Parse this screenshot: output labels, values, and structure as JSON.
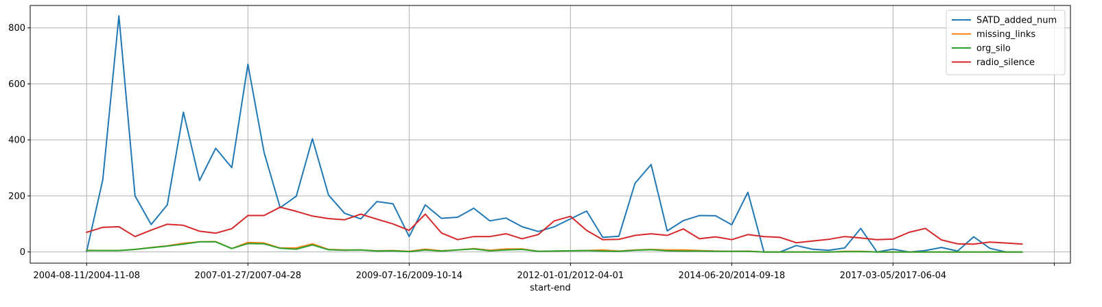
{
  "chart_data": {
    "type": "line",
    "xlabel": "start-end",
    "ylim": [
      -40,
      880
    ],
    "y_ticks": [
      0,
      200,
      400,
      600,
      800
    ],
    "x_tick_labels": [
      "2004-08-11/2004-11-08",
      "2007-01-27/2007-04-28",
      "2009-07-16/2009-10-14",
      "2012-01-01/2012-04-01",
      "2014-06-20/2014-09-18",
      "2017-03-05/2017-06-04",
      ""
    ],
    "x_tick_positions": [
      0,
      10,
      20,
      30,
      40,
      50,
      60
    ],
    "xlim": [
      -3.5,
      61.0
    ],
    "grid": true,
    "legend_position": "top-right",
    "series": [
      {
        "name": "SATD_added_num",
        "color": "#1f77b4",
        "values": [
          2,
          258,
          843,
          200,
          98,
          168,
          499,
          255,
          370,
          301,
          670,
          356,
          158,
          199,
          404,
          203,
          138,
          118,
          180,
          172,
          55,
          168,
          120,
          124,
          156,
          111,
          121,
          90,
          73,
          90,
          118,
          146,
          52,
          56,
          245,
          312,
          75,
          112,
          130,
          129,
          97,
          213,
          0,
          0,
          23,
          10,
          6,
          14,
          84,
          0,
          10,
          0,
          5,
          16,
          3,
          54,
          13,
          0,
          0
        ]
      },
      {
        "name": "missing_links",
        "color": "#ff7f0e",
        "values": [
          6,
          5,
          5,
          9,
          16,
          22,
          31,
          36,
          37,
          12,
          34,
          32,
          14,
          14,
          29,
          9,
          7,
          7,
          4,
          5,
          2,
          10,
          4,
          7,
          12,
          6,
          11,
          11,
          2,
          3,
          4,
          5,
          7,
          3,
          7,
          9,
          7,
          7,
          5,
          3,
          2,
          3,
          0,
          0,
          0,
          0,
          0,
          2,
          2,
          0,
          0,
          0,
          0,
          0,
          0,
          0,
          0,
          0,
          0
        ]
      },
      {
        "name": "org_silo",
        "color": "#2ca02c",
        "values": [
          5,
          5,
          5,
          9,
          15,
          21,
          28,
          36,
          36,
          12,
          30,
          29,
          13,
          10,
          25,
          8,
          6,
          7,
          3,
          4,
          1,
          7,
          3,
          7,
          11,
          4,
          7,
          9,
          2,
          3,
          4,
          5,
          3,
          2,
          6,
          8,
          4,
          3,
          3,
          2,
          2,
          2,
          0,
          0,
          0,
          0,
          0,
          1,
          1,
          0,
          0,
          0,
          0,
          0,
          0,
          0,
          0,
          0,
          0
        ]
      },
      {
        "name": "radio_silence",
        "color": "#d62728",
        "values": [
          70,
          88,
          90,
          55,
          78,
          99,
          95,
          74,
          67,
          83,
          130,
          130,
          160,
          145,
          128,
          119,
          115,
          135,
          117,
          100,
          77,
          135,
          68,
          44,
          55,
          55,
          65,
          47,
          62,
          111,
          127,
          77,
          44,
          45,
          59,
          65,
          59,
          82,
          47,
          54,
          44,
          62,
          55,
          52,
          33,
          39,
          45,
          55,
          50,
          44,
          46,
          70,
          84,
          43,
          29,
          28,
          35,
          32,
          28
        ]
      }
    ]
  }
}
